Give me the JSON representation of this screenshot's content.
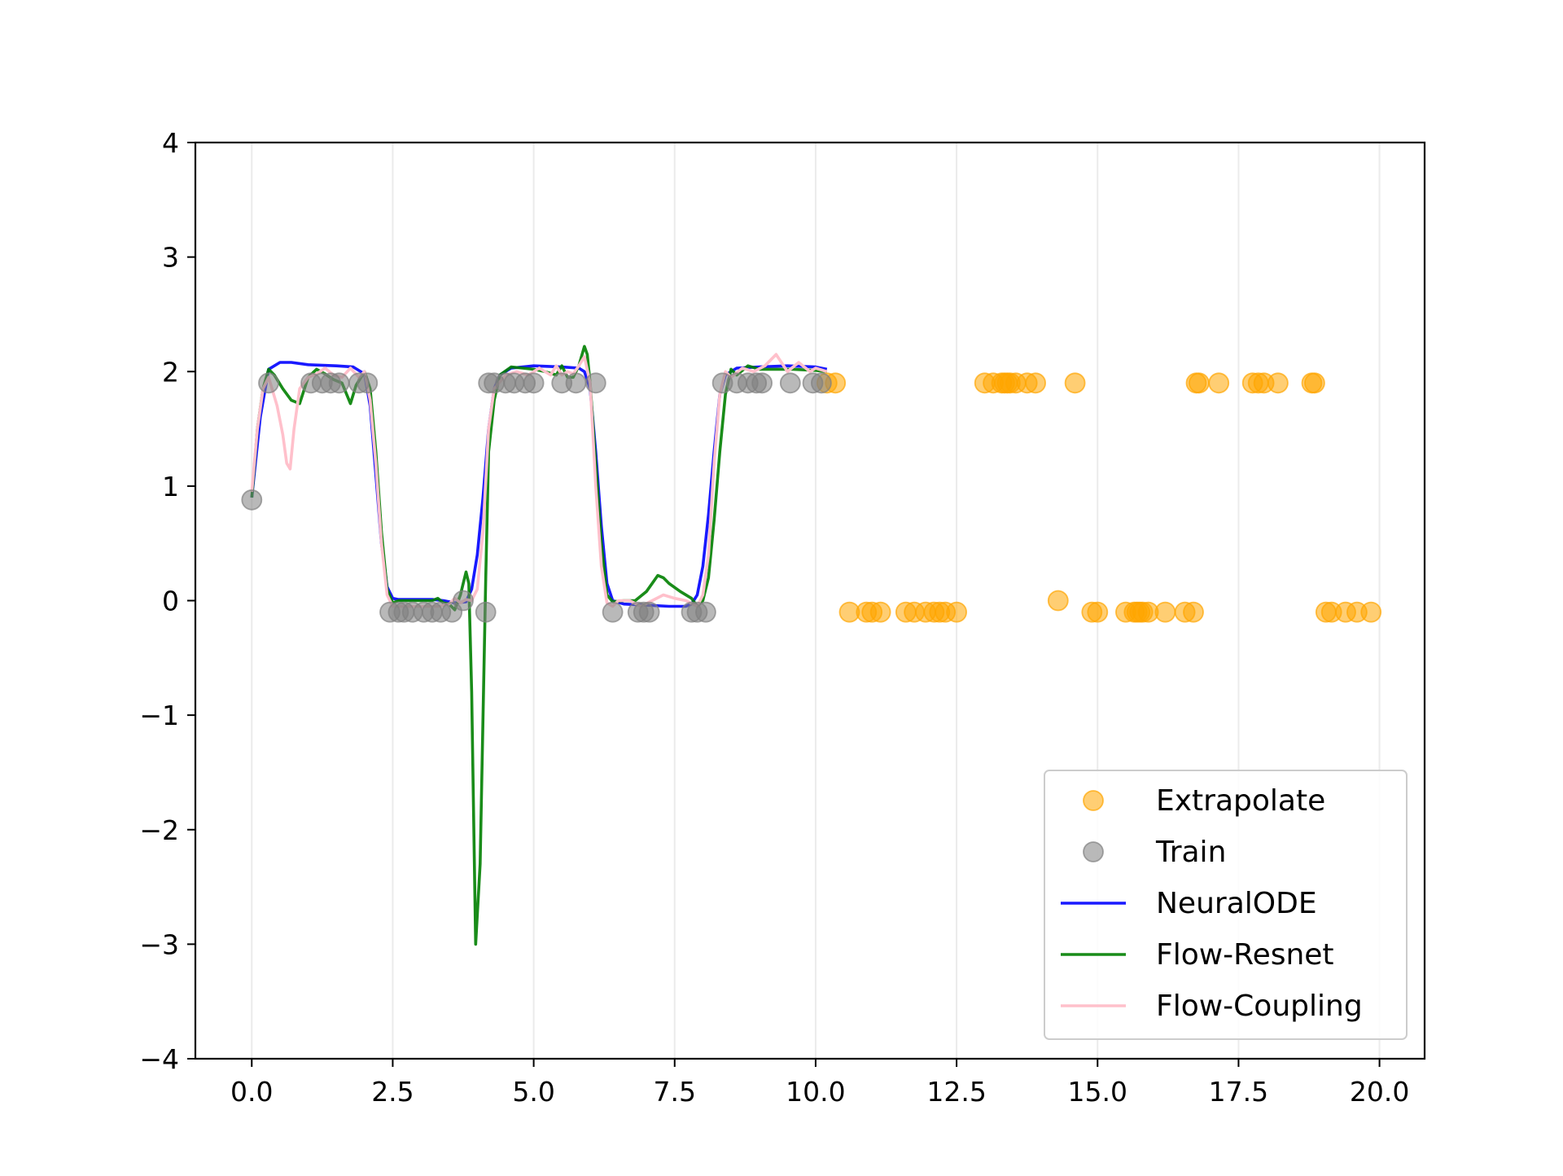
{
  "chart_data": {
    "type": "line",
    "title": "",
    "xlabel": "",
    "ylabel": "",
    "xlim": [
      -1.0,
      20.8
    ],
    "ylim": [
      -4,
      4
    ],
    "x_ticks": [
      0.0,
      2.5,
      5.0,
      7.5,
      10.0,
      12.5,
      15.0,
      17.5,
      20.0
    ],
    "x_tick_labels": [
      "0.0",
      "2.5",
      "5.0",
      "7.5",
      "10.0",
      "12.5",
      "15.0",
      "17.5",
      "20.0"
    ],
    "y_ticks": [
      -4,
      -3,
      -2,
      -1,
      0,
      1,
      2,
      3,
      4
    ],
    "y_tick_labels": [
      "−4",
      "−3",
      "−2",
      "−1",
      "0",
      "1",
      "2",
      "3",
      "4"
    ],
    "x_grid": true,
    "y_grid": false,
    "legend_position": "lower-right",
    "series": [
      {
        "name": "Extrapolate",
        "kind": "scatter",
        "color": "#ffa500",
        "opacity": 0.55,
        "x": [
          10.2,
          10.35,
          10.6,
          10.9,
          11.0,
          11.15,
          11.6,
          11.75,
          11.95,
          12.1,
          12.2,
          12.3,
          12.5,
          13.0,
          13.15,
          13.3,
          13.35,
          13.4,
          13.45,
          13.55,
          13.75,
          13.9,
          14.3,
          14.6,
          14.9,
          15.0,
          15.5,
          15.65,
          15.7,
          15.75,
          15.8,
          15.9,
          16.2,
          16.55,
          16.7,
          16.75,
          16.8,
          17.15,
          17.75,
          17.85,
          17.95,
          18.2,
          18.8,
          18.85,
          19.05,
          19.15,
          19.4,
          19.6,
          19.85
        ],
        "y": [
          1.9,
          1.9,
          -0.1,
          -0.1,
          -0.1,
          -0.1,
          -0.1,
          -0.1,
          -0.1,
          -0.1,
          -0.1,
          -0.1,
          -0.1,
          1.9,
          1.9,
          1.9,
          1.9,
          1.9,
          1.9,
          1.9,
          1.9,
          1.9,
          0.0,
          1.9,
          -0.1,
          -0.1,
          -0.1,
          -0.1,
          -0.1,
          -0.1,
          -0.1,
          -0.1,
          -0.1,
          -0.1,
          -0.1,
          1.9,
          1.9,
          1.9,
          1.9,
          1.9,
          1.9,
          1.9,
          1.9,
          1.9,
          -0.1,
          -0.1,
          -0.1,
          -0.1,
          -0.1
        ]
      },
      {
        "name": "Train",
        "kind": "scatter",
        "color": "#808080",
        "opacity": 0.55,
        "x": [
          0.0,
          0.3,
          1.05,
          1.25,
          1.4,
          1.55,
          1.9,
          2.05,
          2.45,
          2.6,
          2.7,
          2.85,
          3.05,
          3.2,
          3.35,
          3.55,
          3.75,
          4.15,
          4.2,
          4.3,
          4.5,
          4.65,
          4.85,
          5.0,
          5.5,
          5.75,
          6.1,
          6.4,
          6.85,
          6.95,
          7.05,
          7.8,
          7.9,
          8.05,
          8.35,
          8.6,
          8.8,
          8.95,
          9.05,
          9.55,
          9.95,
          10.1
        ],
        "y": [
          0.88,
          1.9,
          1.9,
          1.9,
          1.9,
          1.9,
          1.9,
          1.9,
          -0.1,
          -0.1,
          -0.1,
          -0.1,
          -0.1,
          -0.1,
          -0.1,
          -0.1,
          0.0,
          -0.1,
          1.9,
          1.9,
          1.9,
          1.9,
          1.9,
          1.9,
          1.9,
          1.9,
          1.9,
          -0.1,
          -0.1,
          -0.1,
          -0.1,
          -0.1,
          -0.1,
          -0.1,
          1.9,
          1.9,
          1.9,
          1.9,
          1.9,
          1.9,
          1.9,
          1.9
        ]
      },
      {
        "name": "NeuralODE",
        "kind": "line",
        "color": "#0000ff",
        "opacity": 0.9,
        "x": [
          0.0,
          0.15,
          0.3,
          0.5,
          0.7,
          1.0,
          1.5,
          1.8,
          2.0,
          2.1,
          2.2,
          2.3,
          2.4,
          2.5,
          2.6,
          2.8,
          3.0,
          3.2,
          3.4,
          3.6,
          3.8,
          3.9,
          4.0,
          4.1,
          4.2,
          4.3,
          4.4,
          4.6,
          5.0,
          5.5,
          5.8,
          5.9,
          6.0,
          6.1,
          6.2,
          6.3,
          6.4,
          6.6,
          7.0,
          7.4,
          7.7,
          7.8,
          7.9,
          8.0,
          8.1,
          8.2,
          8.3,
          8.4,
          8.6,
          9.0,
          9.5,
          10.0,
          10.2
        ],
        "y": [
          0.9,
          1.6,
          2.02,
          2.08,
          2.08,
          2.06,
          2.05,
          2.04,
          1.98,
          1.7,
          1.1,
          0.5,
          0.12,
          0.02,
          0.01,
          0.01,
          0.01,
          0.01,
          0.0,
          -0.02,
          -0.01,
          0.1,
          0.4,
          0.9,
          1.5,
          1.85,
          1.97,
          2.03,
          2.05,
          2.04,
          2.03,
          2.0,
          1.85,
          1.3,
          0.65,
          0.15,
          0.0,
          -0.03,
          -0.04,
          -0.05,
          -0.05,
          -0.03,
          0.05,
          0.3,
          0.75,
          1.3,
          1.8,
          1.97,
          2.03,
          2.04,
          2.05,
          2.04,
          2.02
        ]
      },
      {
        "name": "Flow-Resnet",
        "kind": "line",
        "color": "#008000",
        "opacity": 0.9,
        "x": [
          0.0,
          0.1,
          0.2,
          0.3,
          0.4,
          0.55,
          0.7,
          0.85,
          1.0,
          1.15,
          1.3,
          1.45,
          1.6,
          1.75,
          1.85,
          2.0,
          2.1,
          2.2,
          2.3,
          2.4,
          2.5,
          2.6,
          2.8,
          3.0,
          3.2,
          3.3,
          3.4,
          3.5,
          3.6,
          3.7,
          3.75,
          3.8,
          3.85,
          3.9,
          3.97,
          4.05,
          4.15,
          4.2,
          4.3,
          4.4,
          4.6,
          4.8,
          5.0,
          5.2,
          5.4,
          5.5,
          5.6,
          5.7,
          5.8,
          5.9,
          5.95,
          6.0,
          6.1,
          6.2,
          6.3,
          6.4,
          6.6,
          6.8,
          7.0,
          7.1,
          7.2,
          7.3,
          7.4,
          7.6,
          7.8,
          7.9,
          8.0,
          8.1,
          8.2,
          8.3,
          8.4,
          8.5,
          8.6,
          8.8,
          9.0,
          9.3,
          9.6,
          10.0,
          10.2
        ],
        "y": [
          0.9,
          1.5,
          1.85,
          2.02,
          1.97,
          1.85,
          1.75,
          1.72,
          1.95,
          2.02,
          1.98,
          1.93,
          1.9,
          1.72,
          1.88,
          2.0,
          1.85,
          1.3,
          0.6,
          0.1,
          -0.02,
          0.0,
          0.0,
          0.0,
          0.0,
          0.02,
          -0.02,
          -0.03,
          -0.08,
          0.05,
          0.15,
          0.25,
          0.15,
          -0.8,
          -3.0,
          -2.3,
          0.2,
          1.3,
          1.75,
          1.97,
          2.04,
          2.03,
          2.02,
          2.0,
          1.97,
          2.05,
          1.95,
          1.95,
          2.05,
          2.22,
          2.15,
          1.9,
          1.2,
          0.5,
          0.05,
          -0.01,
          0.0,
          0.0,
          0.08,
          0.15,
          0.22,
          0.2,
          0.15,
          0.08,
          0.02,
          -0.05,
          0.0,
          0.2,
          0.7,
          1.3,
          1.8,
          2.02,
          1.97,
          2.05,
          2.02,
          2.02,
          2.02,
          2.01,
          2.0
        ]
      },
      {
        "name": "Flow-Coupling",
        "kind": "line",
        "color": "#ffc0cb",
        "opacity": 1.0,
        "x": [
          0.0,
          0.1,
          0.2,
          0.3,
          0.45,
          0.55,
          0.62,
          0.68,
          0.75,
          0.85,
          1.0,
          1.15,
          1.3,
          1.45,
          1.6,
          1.75,
          1.9,
          2.0,
          2.1,
          2.2,
          2.3,
          2.4,
          2.5,
          2.7,
          3.0,
          3.3,
          3.5,
          3.6,
          3.7,
          3.8,
          3.9,
          4.0,
          4.1,
          4.2,
          4.3,
          4.5,
          4.7,
          4.9,
          5.1,
          5.3,
          5.4,
          5.5,
          5.6,
          5.7,
          5.8,
          5.9,
          6.0,
          6.1,
          6.2,
          6.3,
          6.4,
          6.5,
          6.7,
          6.9,
          7.1,
          7.3,
          7.5,
          7.7,
          7.9,
          8.0,
          8.1,
          8.2,
          8.3,
          8.4,
          8.5,
          8.7,
          8.9,
          9.1,
          9.3,
          9.5,
          9.7,
          9.9,
          10.0,
          10.2
        ],
        "y": [
          0.95,
          1.5,
          1.85,
          1.95,
          1.7,
          1.45,
          1.2,
          1.15,
          1.5,
          1.85,
          1.95,
          1.98,
          2.03,
          1.97,
          1.95,
          2.03,
          1.95,
          2.0,
          1.75,
          1.2,
          0.5,
          0.05,
          -0.05,
          -0.05,
          -0.05,
          -0.05,
          -0.03,
          0.02,
          -0.02,
          0.01,
          0.0,
          0.1,
          0.6,
          1.5,
          1.85,
          1.97,
          2.0,
          1.97,
          2.03,
          1.97,
          2.05,
          1.97,
          2.0,
          1.98,
          2.05,
          2.13,
          1.9,
          1.0,
          0.3,
          -0.02,
          -0.05,
          0.0,
          0.0,
          -0.05,
          0.0,
          0.05,
          0.02,
          0.0,
          -0.05,
          0.05,
          0.4,
          1.2,
          1.8,
          2.0,
          1.95,
          2.03,
          2.0,
          2.05,
          2.15,
          2.0,
          2.08,
          2.0,
          2.03,
          2.0
        ]
      }
    ]
  }
}
